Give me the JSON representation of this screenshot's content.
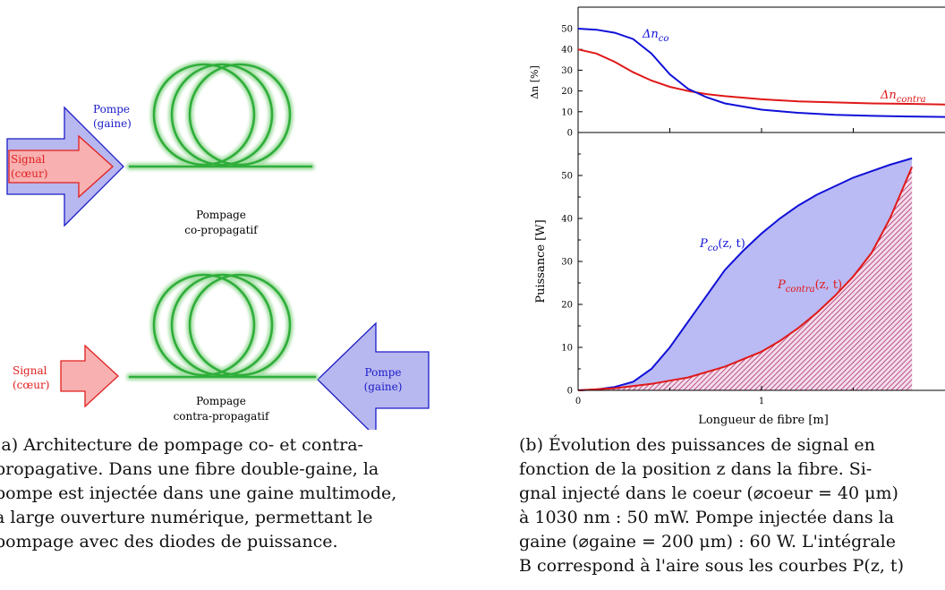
{
  "left": {
    "pompe_gaine_top": [
      "Pompe",
      "(gaine)"
    ],
    "signal_coeur_top": [
      "Signal",
      "(cœur)"
    ],
    "label_co": [
      "Pompage",
      "co-propagatif"
    ],
    "signal_coeur_bottom": [
      "Signal",
      "(cœur)"
    ],
    "pompe_gaine_bottom": [
      "Pompe",
      "(gaine)"
    ],
    "label_contra": [
      "Pompage",
      "contra-propagatif"
    ],
    "caption_lines": [
      "(a) Architecture de pompage co- et contra-",
      "propagative. Dans une fibre double-gaine, la",
      "pompe est injectée dans une gaine multimode,",
      "à large ouverture numérique, permettant le",
      "pompage avec des diodes de puissance."
    ]
  },
  "right": {
    "caption_lines": [
      "(b) Évolution des puissances de signal en",
      "fonction de la position z dans la fibre. Si-",
      "gnal injecté dans le coeur (⌀coeur = 40 μm)",
      "à 1030 nm : 50 mW. Pompe injectée dans la",
      "gaine (⌀gaine = 200 μm) : 60 W. L'intégrale",
      "B correspond à l'aire sous les courbes P(z, t)"
    ]
  },
  "colors": {
    "pump_fill": "#b8b8f0",
    "pump_stroke": "#1c1cc8",
    "signal_fill": "#f8b0b0",
    "signal_stroke": "#e02020",
    "fiber": "#2fae3a",
    "co_curve": "#1010d8",
    "contra_curve": "#e01818"
  },
  "chart_data": [
    {
      "type": "line",
      "title": "",
      "xlabel": "",
      "ylabel": "Δn [%]",
      "ylim": [
        0,
        55
      ],
      "yticks": [
        "0",
        "10",
        "20",
        "30",
        "40",
        "50"
      ],
      "series": [
        {
          "name": "Δn_co",
          "label_main": "Δn",
          "label_sub": "co",
          "x": [
            0,
            0.1,
            0.2,
            0.3,
            0.4,
            0.5,
            0.6,
            0.7,
            0.8,
            1.0,
            1.2,
            1.4,
            1.6,
            1.8,
            2.0
          ],
          "y": [
            50,
            49.5,
            48,
            45,
            38,
            28,
            21,
            17,
            14,
            11,
            9.5,
            8.5,
            8,
            7.7,
            7.5
          ]
        },
        {
          "name": "Δn_contra",
          "label_main": "Δn",
          "label_sub": "contra",
          "x": [
            0,
            0.1,
            0.2,
            0.3,
            0.4,
            0.5,
            0.6,
            0.7,
            0.8,
            1.0,
            1.2,
            1.4,
            1.6,
            1.8,
            2.0
          ],
          "y": [
            40,
            38,
            34,
            29,
            25,
            22,
            20,
            18.5,
            17.5,
            16,
            15,
            14.5,
            14,
            13.8,
            13.5
          ]
        }
      ]
    },
    {
      "type": "area",
      "title": "",
      "xlabel": "Longueur de fibre  [m]",
      "ylabel": "Puissance  [W]",
      "xlim": [
        0,
        2
      ],
      "ylim": [
        0,
        60
      ],
      "xticks": [
        "0",
        "1"
      ],
      "yticks": [
        "0",
        "10",
        "20",
        "30",
        "40",
        "50"
      ],
      "series": [
        {
          "name": "P_co(z,t)",
          "label_main": "P",
          "label_sub": "co",
          "label_rest": "(z, t)",
          "x": [
            0,
            0.1,
            0.2,
            0.3,
            0.4,
            0.5,
            0.6,
            0.7,
            0.8,
            0.9,
            1.0,
            1.1,
            1.2,
            1.3,
            1.4,
            1.5,
            1.6,
            1.7,
            1.82
          ],
          "y": [
            0,
            0.2,
            0.8,
            2,
            5,
            10,
            16,
            22,
            28,
            32.5,
            36.5,
            40,
            43,
            45.5,
            47.5,
            49.5,
            51,
            52.5,
            54
          ]
        },
        {
          "name": "P_contra(z,t)",
          "label_main": "P",
          "label_sub": "contra",
          "label_rest": "(z, t)",
          "x": [
            0,
            0.2,
            0.4,
            0.6,
            0.8,
            1.0,
            1.1,
            1.2,
            1.3,
            1.4,
            1.5,
            1.6,
            1.7,
            1.75,
            1.8,
            1.82
          ],
          "y": [
            0,
            0.5,
            1.5,
            3,
            5.5,
            9,
            11.5,
            14.5,
            18,
            22,
            26.5,
            32,
            40,
            45,
            50,
            52
          ]
        }
      ]
    }
  ]
}
